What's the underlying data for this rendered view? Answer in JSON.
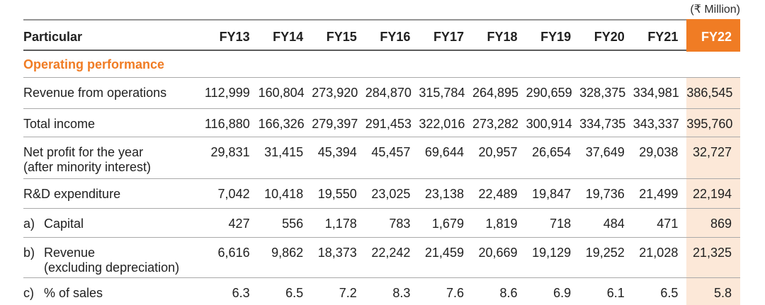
{
  "unit_label": "(₹ Million)",
  "colors": {
    "accent_orange": "#f07c24",
    "highlight_peach": "#fce8d8",
    "header_text_on_orange": "#ffffff",
    "body_text": "#212121",
    "row_divider": "#a9a9a9"
  },
  "table": {
    "header": {
      "particular": "Particular",
      "years": [
        "FY13",
        "FY14",
        "FY15",
        "FY16",
        "FY17",
        "FY18",
        "FY19",
        "FY20",
        "FY21",
        "FY22"
      ],
      "highlighted_year": "FY22"
    },
    "section_title": "Operating performance",
    "rows": [
      {
        "prefix": "",
        "label": "Revenue from operations",
        "label2": "",
        "values": [
          "112,999",
          "160,804",
          "273,920",
          "284,870",
          "315,784",
          "264,895",
          "290,659",
          "328,375",
          "334,981",
          "386,545"
        ]
      },
      {
        "prefix": "",
        "label": "Total income",
        "label2": "",
        "values": [
          "116,880",
          "166,326",
          "279,397",
          "291,453",
          "322,016",
          "273,282",
          "300,914",
          "334,735",
          "343,337",
          "395,760"
        ]
      },
      {
        "prefix": "",
        "label": "Net profit for the year",
        "label2": "(after minority interest)",
        "values": [
          "29,831",
          "31,415",
          "45,394",
          "45,457",
          "69,644",
          "20,957",
          "26,654",
          "37,649",
          "29,038",
          "32,727"
        ]
      },
      {
        "prefix": "",
        "label": "R&D expenditure",
        "label2": "",
        "values": [
          "7,042",
          "10,418",
          "19,550",
          "23,025",
          "23,138",
          "22,489",
          "19,847",
          "19,736",
          "21,499",
          "22,194"
        ]
      },
      {
        "prefix": "a)",
        "label": "Capital",
        "label2": "",
        "values": [
          "427",
          "556",
          "1,178",
          "783",
          "1,679",
          "1,819",
          "718",
          "484",
          "471",
          "869"
        ]
      },
      {
        "prefix": "b)",
        "label": "Revenue",
        "label2": "(excluding depreciation)",
        "values": [
          "6,616",
          "9,862",
          "18,373",
          "22,242",
          "21,459",
          "20,669",
          "19,129",
          "19,252",
          "21,028",
          "21,325"
        ]
      },
      {
        "prefix": "c)",
        "label": "% of sales",
        "label2": "",
        "values": [
          "6.3",
          "6.5",
          "7.2",
          "8.3",
          "7.6",
          "8.6",
          "6.9",
          "6.1",
          "6.5",
          "5.8"
        ]
      }
    ]
  }
}
